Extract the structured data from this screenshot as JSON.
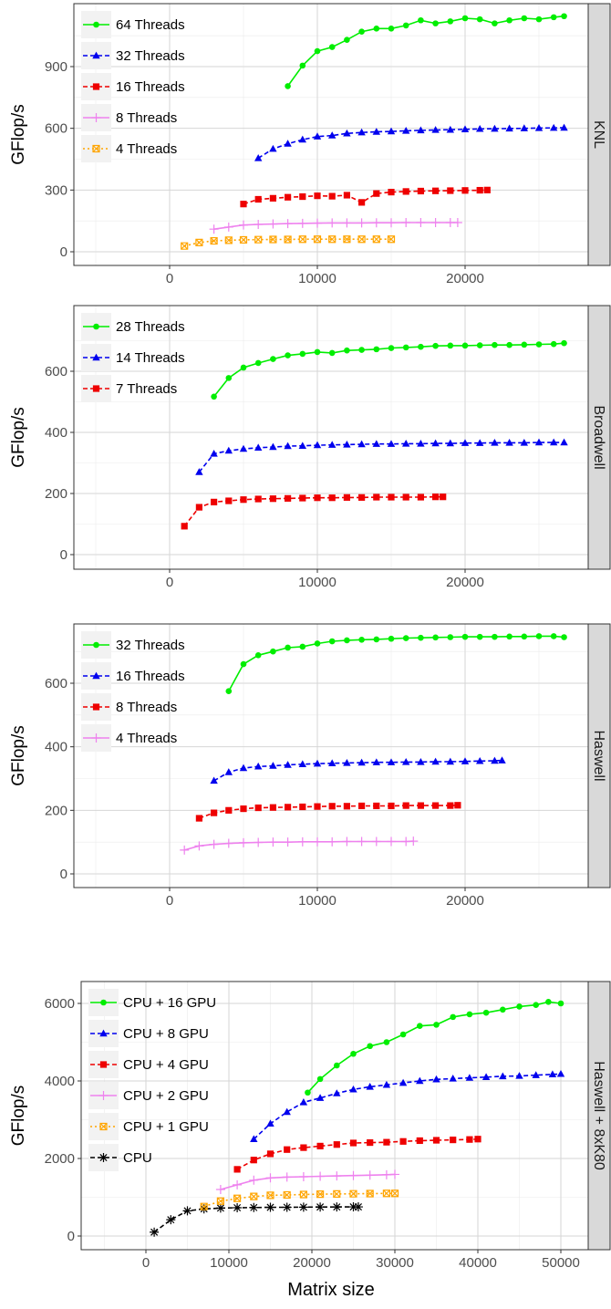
{
  "xlabel": "Matrix size",
  "chart_data": [
    {
      "type": "line",
      "panel": "KNL",
      "ylabel": "GFlop/s",
      "xlim": [
        -6500,
        27600
      ],
      "ylim": [
        -60,
        1200
      ],
      "xticks": [
        0,
        10000,
        20000
      ],
      "yticks": [
        0,
        300,
        600,
        900
      ],
      "legend_position": "top-left",
      "series": [
        {
          "name": "64 Threads",
          "color": "#00ee00",
          "marker": "circle",
          "line": "solid",
          "x": [
            8000,
            9000,
            10000,
            11000,
            12000,
            13000,
            14000,
            15000,
            16000,
            17000,
            18000,
            19000,
            20000,
            21000,
            22000,
            23000,
            24000,
            25000,
            26000,
            26700
          ],
          "y": [
            805,
            905,
            975,
            995,
            1030,
            1070,
            1085,
            1085,
            1100,
            1125,
            1110,
            1120,
            1135,
            1130,
            1110,
            1125,
            1135,
            1130,
            1140,
            1145
          ]
        },
        {
          "name": "32 Threads",
          "color": "#0000ee",
          "marker": "triangle",
          "line": "dashed",
          "x": [
            6000,
            7000,
            8000,
            9000,
            10000,
            11000,
            12000,
            13000,
            14000,
            15000,
            16000,
            17000,
            18000,
            19000,
            20000,
            21000,
            22000,
            23000,
            24000,
            25000,
            26000,
            26700
          ],
          "y": [
            455,
            500,
            525,
            545,
            560,
            565,
            575,
            580,
            583,
            585,
            588,
            590,
            592,
            593,
            595,
            597,
            598,
            599,
            600,
            601,
            602,
            603
          ]
        },
        {
          "name": "16 Threads",
          "color": "#ee0000",
          "marker": "square",
          "line": "dashed",
          "x": [
            5000,
            6000,
            7000,
            8000,
            9000,
            10000,
            11000,
            12000,
            13000,
            14000,
            15000,
            16000,
            17000,
            18000,
            19000,
            20000,
            21000,
            21500
          ],
          "y": [
            232,
            255,
            260,
            265,
            268,
            272,
            270,
            275,
            240,
            283,
            290,
            293,
            295,
            296,
            297,
            298,
            299,
            300
          ]
        },
        {
          "name": "8 Threads",
          "color": "#ee82ee",
          "marker": "plus",
          "line": "solid",
          "x": [
            3000,
            4000,
            5000,
            6000,
            7000,
            8000,
            9000,
            10000,
            11000,
            12000,
            13000,
            14000,
            15000,
            16000,
            17000,
            18000,
            19000,
            19500
          ],
          "y": [
            110,
            120,
            130,
            133,
            135,
            137,
            138,
            139,
            140,
            140,
            140,
            141,
            141,
            142,
            142,
            142,
            142,
            142
          ]
        },
        {
          "name": "4 Threads",
          "color": "#ffa500",
          "marker": "boxx",
          "line": "dotted",
          "x": [
            1000,
            2000,
            3000,
            4000,
            5000,
            6000,
            7000,
            8000,
            9000,
            10000,
            11000,
            12000,
            13000,
            14000,
            15000
          ],
          "y": [
            28,
            45,
            53,
            56,
            58,
            59,
            60,
            60,
            61,
            61,
            61,
            61,
            61,
            61,
            61
          ]
        }
      ]
    },
    {
      "type": "line",
      "panel": "Broadwell",
      "ylabel": "GFlop/s",
      "xlim": [
        -6500,
        27600
      ],
      "ylim": [
        -36,
        725
      ],
      "xticks": [
        0,
        10000,
        20000
      ],
      "yticks": [
        0,
        200,
        400,
        600
      ],
      "legend_position": "top-left",
      "series": [
        {
          "name": "28 Threads",
          "color": "#00ee00",
          "marker": "circle",
          "line": "solid",
          "x": [
            3000,
            4000,
            5000,
            6000,
            7000,
            8000,
            9000,
            10000,
            11000,
            12000,
            13000,
            14000,
            15000,
            16000,
            17000,
            18000,
            19000,
            20000,
            21000,
            22000,
            23000,
            24000,
            25000,
            26000,
            26700
          ],
          "y": [
            517,
            578,
            612,
            627,
            640,
            652,
            657,
            663,
            660,
            668,
            670,
            672,
            676,
            678,
            680,
            683,
            684,
            684,
            685,
            686,
            686,
            687,
            688,
            689,
            692
          ]
        },
        {
          "name": "14 Threads",
          "color": "#0000ee",
          "marker": "triangle",
          "line": "dashed",
          "x": [
            2000,
            3000,
            4000,
            5000,
            6000,
            7000,
            8000,
            9000,
            10000,
            11000,
            12000,
            13000,
            14000,
            15000,
            16000,
            17000,
            18000,
            19000,
            20000,
            21000,
            22000,
            23000,
            24000,
            25000,
            26000,
            26700
          ],
          "y": [
            270,
            330,
            340,
            346,
            350,
            352,
            355,
            356,
            358,
            359,
            360,
            361,
            362,
            362,
            363,
            363,
            364,
            364,
            365,
            365,
            366,
            366,
            366,
            367,
            367,
            367
          ]
        },
        {
          "name": "7 Threads",
          "color": "#ee0000",
          "marker": "square",
          "line": "dashed",
          "x": [
            1000,
            2000,
            3000,
            4000,
            5000,
            6000,
            7000,
            8000,
            9000,
            10000,
            11000,
            12000,
            13000,
            14000,
            15000,
            16000,
            17000,
            18000,
            18500
          ],
          "y": [
            93,
            155,
            172,
            176,
            180,
            182,
            183,
            184,
            185,
            186,
            186,
            187,
            187,
            188,
            188,
            188,
            188,
            189,
            189
          ]
        }
      ]
    },
    {
      "type": "line",
      "panel": "Haswell",
      "ylabel": "GFlop/s",
      "xlim": [
        -6500,
        27600
      ],
      "ylim": [
        -38,
        790
      ],
      "xticks": [
        0,
        10000,
        20000
      ],
      "yticks": [
        0,
        200,
        400,
        600
      ],
      "legend_position": "top-left",
      "series": [
        {
          "name": "32 Threads",
          "color": "#00ee00",
          "marker": "circle",
          "line": "solid",
          "x": [
            4000,
            5000,
            6000,
            7000,
            8000,
            9000,
            10000,
            11000,
            12000,
            13000,
            14000,
            15000,
            16000,
            17000,
            18000,
            19000,
            20000,
            21000,
            22000,
            23000,
            24000,
            25000,
            26000,
            26700
          ],
          "y": [
            575,
            660,
            688,
            700,
            712,
            715,
            725,
            732,
            735,
            737,
            738,
            740,
            742,
            743,
            744,
            745,
            746,
            746,
            746,
            747,
            747,
            748,
            748,
            745
          ]
        },
        {
          "name": "16 Threads",
          "color": "#0000ee",
          "marker": "triangle",
          "line": "dashed",
          "x": [
            3000,
            4000,
            5000,
            6000,
            7000,
            8000,
            9000,
            10000,
            11000,
            12000,
            13000,
            14000,
            15000,
            16000,
            17000,
            18000,
            19000,
            20000,
            21000,
            22000,
            22500
          ],
          "y": [
            293,
            320,
            333,
            338,
            340,
            343,
            345,
            347,
            348,
            349,
            350,
            351,
            351,
            352,
            352,
            353,
            353,
            354,
            355,
            356,
            357
          ]
        },
        {
          "name": "8 Threads",
          "color": "#ee0000",
          "marker": "square",
          "line": "dashed",
          "x": [
            2000,
            3000,
            4000,
            5000,
            6000,
            7000,
            8000,
            9000,
            10000,
            11000,
            12000,
            13000,
            14000,
            15000,
            16000,
            17000,
            18000,
            19000,
            19500
          ],
          "y": [
            175,
            192,
            200,
            205,
            208,
            209,
            210,
            211,
            212,
            213,
            213,
            214,
            214,
            214,
            215,
            215,
            215,
            215,
            216
          ]
        },
        {
          "name": "4 Threads",
          "color": "#ee82ee",
          "marker": "plus",
          "line": "solid",
          "x": [
            1000,
            2000,
            3000,
            4000,
            5000,
            6000,
            7000,
            8000,
            9000,
            10000,
            11000,
            12000,
            13000,
            14000,
            15000,
            16000,
            16500
          ],
          "y": [
            75,
            88,
            93,
            96,
            98,
            99,
            100,
            100,
            101,
            101,
            101,
            102,
            102,
            102,
            102,
            102,
            103
          ]
        }
      ]
    },
    {
      "type": "line",
      "panel": "Haswell + 8xK80",
      "ylabel": "GFlop/s",
      "xlim": [
        -7500,
        52000
      ],
      "ylim": [
        -300,
        6350
      ],
      "xticks": [
        0,
        10000,
        20000,
        30000,
        40000,
        50000
      ],
      "yticks": [
        0,
        2000,
        4000,
        6000
      ],
      "legend_position": "top-left",
      "series": [
        {
          "name": "CPU + 16 GPU",
          "color": "#00ee00",
          "marker": "circle",
          "line": "solid",
          "x": [
            19500,
            21000,
            23000,
            25000,
            27000,
            29000,
            31000,
            33000,
            35000,
            37000,
            39000,
            41000,
            43000,
            45000,
            47000,
            48500,
            50000
          ],
          "y": [
            3700,
            4050,
            4400,
            4700,
            4900,
            5000,
            5200,
            5420,
            5450,
            5650,
            5720,
            5760,
            5840,
            5920,
            5960,
            6040,
            6000
          ]
        },
        {
          "name": "CPU + 8 GPU",
          "color": "#0000ee",
          "marker": "triangle",
          "line": "dashed",
          "x": [
            13000,
            15000,
            17000,
            19000,
            21000,
            23000,
            25000,
            27000,
            29000,
            31000,
            33000,
            35000,
            37000,
            39000,
            41000,
            43000,
            45000,
            47000,
            49000,
            50000
          ],
          "y": [
            2500,
            2900,
            3200,
            3450,
            3560,
            3680,
            3780,
            3850,
            3900,
            3950,
            4000,
            4040,
            4060,
            4080,
            4100,
            4120,
            4130,
            4150,
            4170,
            4180
          ]
        },
        {
          "name": "CPU + 4 GPU",
          "color": "#ee0000",
          "marker": "square",
          "line": "dashed",
          "x": [
            11000,
            13000,
            15000,
            17000,
            19000,
            21000,
            23000,
            25000,
            27000,
            29000,
            31000,
            33000,
            35000,
            37000,
            39000,
            40000
          ],
          "y": [
            1720,
            1960,
            2120,
            2230,
            2280,
            2320,
            2360,
            2400,
            2410,
            2420,
            2440,
            2460,
            2470,
            2480,
            2490,
            2500
          ]
        },
        {
          "name": "CPU + 2 GPU",
          "color": "#ee82ee",
          "marker": "plus",
          "line": "solid",
          "x": [
            9000,
            11000,
            13000,
            15000,
            17000,
            19000,
            21000,
            23000,
            25000,
            27000,
            29000,
            30000
          ],
          "y": [
            1200,
            1320,
            1440,
            1500,
            1520,
            1530,
            1540,
            1550,
            1560,
            1570,
            1580,
            1590
          ]
        },
        {
          "name": "CPU + 1 GPU",
          "color": "#ffa500",
          "marker": "boxx",
          "line": "dotted",
          "x": [
            7000,
            9000,
            11000,
            13000,
            15000,
            17000,
            19000,
            21000,
            23000,
            25000,
            27000,
            29000,
            30000
          ],
          "y": [
            760,
            900,
            970,
            1020,
            1050,
            1060,
            1070,
            1080,
            1085,
            1090,
            1095,
            1100,
            1100
          ]
        },
        {
          "name": "CPU",
          "color": "#000000",
          "marker": "asterisk",
          "line": "dashed",
          "x": [
            1000,
            3000,
            5000,
            7000,
            9000,
            11000,
            13000,
            15000,
            17000,
            19000,
            21000,
            23000,
            25000,
            25600
          ],
          "y": [
            100,
            420,
            650,
            700,
            720,
            730,
            735,
            740,
            742,
            745,
            748,
            750,
            752,
            752
          ]
        }
      ]
    }
  ]
}
